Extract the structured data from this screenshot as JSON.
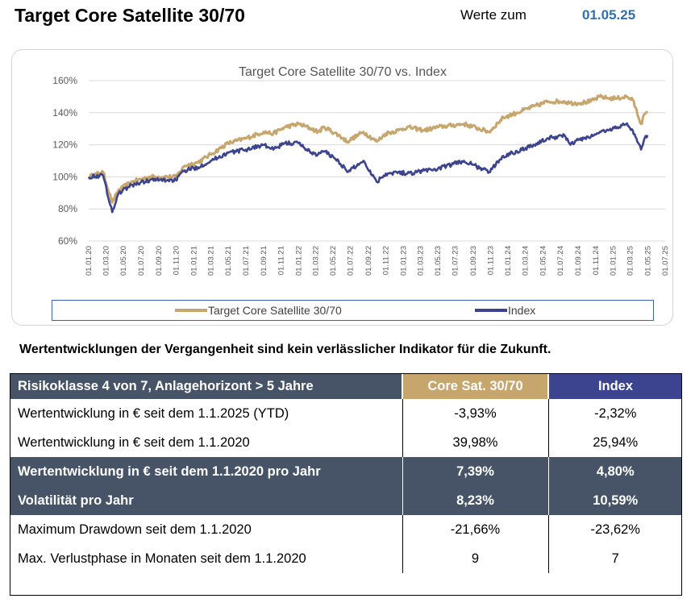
{
  "header": {
    "title": "Target Core Satellite 30/70",
    "date_label": "Werte zum",
    "date_value": "01.05.25"
  },
  "chart_data": {
    "type": "line",
    "title": "Target Core Satellite 30/70 vs. Index",
    "xlabel": "",
    "ylabel": "",
    "ylim": [
      60,
      160
    ],
    "yticks": [
      "60%",
      "80%",
      "100%",
      "120%",
      "140%",
      "160%"
    ],
    "ytick_values": [
      60,
      80,
      100,
      120,
      140,
      160
    ],
    "xticks": [
      "01.01.20",
      "01.03.20",
      "01.05.20",
      "01.07.20",
      "01.09.20",
      "01.11.20",
      "01.01.21",
      "01.03.21",
      "01.05.21",
      "01.07.21",
      "01.09.21",
      "01.11.21",
      "01.01.22",
      "01.03.22",
      "01.05.22",
      "01.07.22",
      "01.09.22",
      "01.11.22",
      "01.01.23",
      "01.03.23",
      "01.05.23",
      "01.07.23",
      "01.09.23",
      "01.11.23",
      "01.01.24",
      "01.03.24",
      "01.05.24",
      "01.07.24",
      "01.09.24",
      "01.11.24",
      "01.01.25",
      "01.03.25",
      "01.05.25",
      "01.07.25"
    ],
    "grid": true,
    "legend_position": "bottom",
    "series": [
      {
        "name": "Target Core Satellite 30/70",
        "color": "#c7a66d",
        "x": [
          "2020-01-01",
          "2020-02-20",
          "2020-03-23",
          "2020-04-15",
          "2020-06-01",
          "2020-08-01",
          "2020-10-30",
          "2020-12-01",
          "2021-01-15",
          "2021-03-01",
          "2021-05-01",
          "2021-07-01",
          "2021-09-01",
          "2021-10-05",
          "2021-11-15",
          "2022-01-01",
          "2022-02-15",
          "2022-03-10",
          "2022-04-01",
          "2022-05-20",
          "2022-06-20",
          "2022-08-15",
          "2022-09-30",
          "2022-11-01",
          "2022-12-15",
          "2023-01-15",
          "2023-03-15",
          "2023-05-01",
          "2023-07-31",
          "2023-10-27",
          "2023-12-15",
          "2024-02-01",
          "2024-04-01",
          "2024-05-20",
          "2024-07-15",
          "2024-08-05",
          "2024-09-01",
          "2024-10-15",
          "2024-11-15",
          "2024-12-15",
          "2025-01-15",
          "2025-02-15",
          "2025-03-10",
          "2025-04-08",
          "2025-04-20",
          "2025-05-01"
        ],
        "y": [
          100,
          103,
          84,
          92,
          97,
          100,
          100,
          107,
          109,
          114,
          121,
          124,
          128,
          127,
          131,
          133,
          130,
          128,
          131,
          126,
          122,
          128,
          122,
          127,
          129,
          131,
          129,
          131,
          133,
          128,
          137,
          140,
          144,
          147,
          147,
          146,
          146,
          147,
          150,
          149,
          149,
          150,
          148,
          133,
          139,
          140
        ]
      },
      {
        "name": "Index",
        "color": "#3c438f",
        "x": [
          "2020-01-01",
          "2020-02-20",
          "2020-03-23",
          "2020-04-15",
          "2020-06-01",
          "2020-08-01",
          "2020-10-30",
          "2020-12-01",
          "2021-01-15",
          "2021-03-01",
          "2021-05-01",
          "2021-07-01",
          "2021-09-01",
          "2021-10-05",
          "2021-11-15",
          "2022-01-01",
          "2022-02-15",
          "2022-03-10",
          "2022-04-01",
          "2022-05-20",
          "2022-06-20",
          "2022-08-15",
          "2022-09-30",
          "2022-11-01",
          "2022-12-15",
          "2023-01-15",
          "2023-03-15",
          "2023-05-01",
          "2023-07-31",
          "2023-10-27",
          "2023-12-15",
          "2024-02-01",
          "2024-04-01",
          "2024-05-20",
          "2024-07-15",
          "2024-08-05",
          "2024-09-01",
          "2024-10-15",
          "2024-11-15",
          "2024-12-15",
          "2025-01-15",
          "2025-02-15",
          "2025-03-10",
          "2025-04-08",
          "2025-04-20",
          "2025-05-01"
        ],
        "y": [
          100,
          101,
          78,
          90,
          95,
          98,
          98,
          104,
          106,
          110,
          115,
          117,
          120,
          117,
          121,
          121,
          115,
          114,
          116,
          110,
          103,
          110,
          97,
          102,
          103,
          102,
          104,
          105,
          110,
          103,
          113,
          116,
          120,
          124,
          126,
          120,
          123,
          125,
          128,
          129,
          131,
          133,
          129,
          117,
          124,
          126
        ]
      }
    ]
  },
  "disclaimer": "Wertentwicklungen der Vergangenheit sind kein verlässlicher Indikator für die Zukunft.",
  "table": {
    "header": {
      "label": "Risikoklasse 4 von 7, Anlagehorizont > 5 Jahre",
      "col1": "Core Sat. 30/70",
      "col2": "Index"
    },
    "rows": [
      {
        "label": "Wertentwicklung in € seit dem 1.1.2025 (YTD)",
        "v1": "-3,93%",
        "v2": "-2,32%"
      },
      {
        "label": "Wertentwicklung in € seit dem 1.1.2020",
        "v1": "39,98%",
        "v2": "25,94%"
      },
      {
        "label": "Wertentwicklung in € seit dem 1.1.2020 pro Jahr",
        "v1": "7,39%",
        "v2": "4,80%"
      },
      {
        "label": "Volatilität pro Jahr",
        "v1": "8,23%",
        "v2": "10,59%"
      },
      {
        "label": "Maximum Drawdown seit dem 1.1.2020",
        "v1": "-21,66%",
        "v2": "-23,62%"
      },
      {
        "label": "Max. Verlustphase in Monaten seit dem 1.1.2020",
        "v1": "9",
        "v2": "7"
      }
    ]
  }
}
